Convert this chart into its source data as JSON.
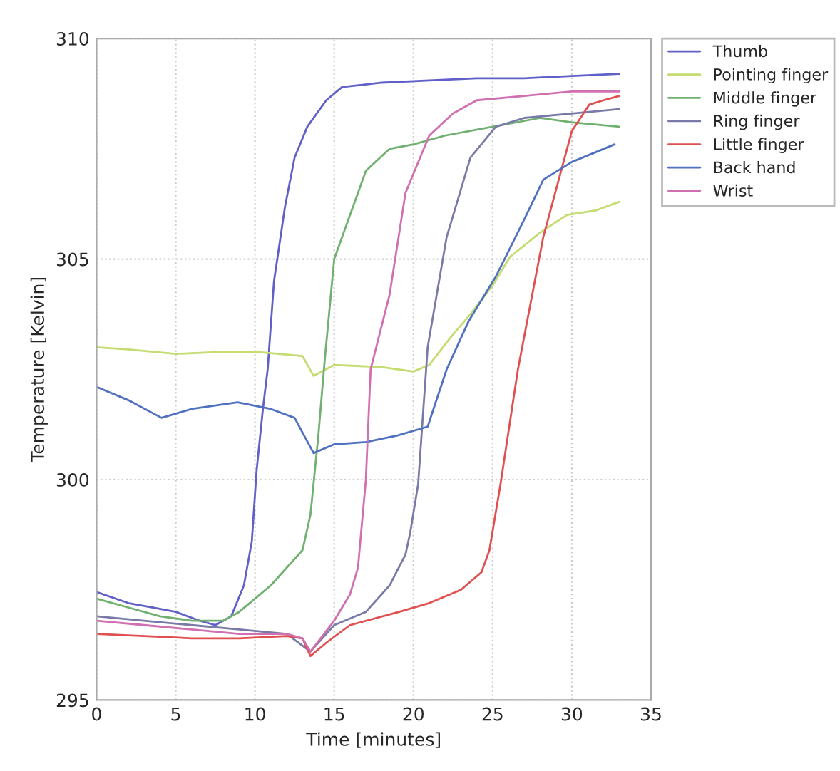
{
  "chart_data": {
    "type": "line",
    "xlabel": "Time [minutes]",
    "ylabel": "Temperature [Kelvin]",
    "xlim": [
      0,
      35
    ],
    "xticks": [
      0,
      5,
      10,
      15,
      20,
      25,
      30,
      35
    ],
    "ylim": [
      295,
      310
    ],
    "yticks": [
      295,
      300,
      305,
      310
    ],
    "grid": true,
    "legend": "top right",
    "marker": "none",
    "line_style": "solid",
    "series": [
      {
        "name": "Thumb",
        "color": "#6060c8",
        "x": [
          0,
          2,
          3.5,
          5,
          6.5,
          7.5,
          8.5,
          9.3,
          9.8,
          10.1,
          10.5,
          10.8,
          11.2,
          11.9,
          12.5,
          13.3,
          14.5,
          15.5,
          18,
          21,
          24,
          27,
          30,
          33
        ],
        "values": [
          297.45,
          297.2,
          297.1,
          297.0,
          296.8,
          296.7,
          296.9,
          297.6,
          298.6,
          300.2,
          301.6,
          302.5,
          304.5,
          306.2,
          307.3,
          308.0,
          308.6,
          308.9,
          309.0,
          309.05,
          309.1,
          309.1,
          309.15,
          309.2
        ]
      },
      {
        "name": "Pointing finger",
        "color": "#c4dc70",
        "x": [
          0,
          2,
          5,
          8,
          10,
          13,
          13.7,
          15,
          18,
          20,
          21,
          22.3,
          23.6,
          25,
          26.1,
          28,
          29.7,
          31.5,
          33
        ],
        "values": [
          303.0,
          302.95,
          302.85,
          302.9,
          302.9,
          302.8,
          302.35,
          302.6,
          302.55,
          302.45,
          302.6,
          303.2,
          303.75,
          304.4,
          305.05,
          305.6,
          306.0,
          306.1,
          306.3
        ]
      },
      {
        "name": "Middle finger",
        "color": "#70b070",
        "x": [
          0,
          2,
          4,
          6,
          8,
          9,
          10,
          11,
          12,
          13,
          13.5,
          14,
          14.4,
          15,
          16,
          17,
          18.5,
          20,
          22,
          25,
          28,
          30,
          33
        ],
        "values": [
          297.3,
          297.1,
          296.9,
          296.8,
          296.8,
          297.0,
          297.3,
          297.6,
          298.0,
          298.4,
          299.2,
          301.0,
          302.7,
          305.0,
          306.0,
          307.0,
          307.5,
          307.6,
          307.8,
          308.0,
          308.2,
          308.1,
          308.0
        ]
      },
      {
        "name": "Ring finger",
        "color": "#7a7aa8",
        "x": [
          0,
          3,
          6,
          9,
          12,
          13.5,
          15,
          17,
          18.5,
          19.5,
          19.8,
          20.3,
          20.9,
          22.1,
          23.6,
          25.2,
          27,
          30,
          33
        ],
        "values": [
          296.9,
          296.8,
          296.7,
          296.6,
          296.5,
          296.1,
          296.7,
          297.0,
          297.6,
          298.3,
          298.8,
          299.9,
          303.0,
          305.5,
          307.3,
          308.0,
          308.2,
          308.3,
          308.4
        ]
      },
      {
        "name": "Little finger",
        "color": "#e05050",
        "x": [
          0,
          3,
          6,
          9,
          12,
          13,
          13.5,
          14.5,
          16,
          19.1,
          21,
          23,
          24.3,
          24.8,
          25.5,
          26.6,
          28.2,
          30,
          31.1,
          32,
          33
        ],
        "values": [
          296.5,
          296.45,
          296.4,
          296.4,
          296.45,
          296.4,
          296.0,
          296.3,
          296.7,
          297.0,
          297.2,
          297.5,
          297.9,
          298.4,
          299.9,
          302.5,
          305.5,
          307.9,
          308.5,
          308.6,
          308.7
        ]
      },
      {
        "name": "Back hand",
        "color": "#5070c0",
        "x": [
          0,
          2,
          4.1,
          6,
          8.9,
          11,
          12.5,
          13.7,
          15,
          17,
          19,
          20.9,
          22.1,
          23.5,
          25.2,
          27,
          28.2,
          30,
          32.7
        ],
        "values": [
          302.1,
          301.8,
          301.4,
          301.6,
          301.75,
          301.6,
          301.4,
          300.6,
          300.8,
          300.85,
          301.0,
          301.2,
          302.5,
          303.6,
          304.6,
          305.9,
          306.8,
          307.2,
          307.6
        ]
      },
      {
        "name": "Wrist",
        "color": "#d070b0",
        "x": [
          0,
          3,
          6,
          9,
          12,
          13,
          13.5,
          15,
          16,
          16.5,
          17,
          17.3,
          18.5,
          19.5,
          21,
          22.5,
          24,
          27,
          30,
          33
        ],
        "values": [
          296.8,
          296.7,
          296.6,
          296.5,
          296.5,
          296.4,
          296.1,
          296.8,
          297.4,
          298.0,
          300.0,
          302.5,
          304.2,
          306.5,
          307.8,
          308.3,
          308.6,
          308.7,
          308.8,
          308.8
        ]
      }
    ]
  }
}
